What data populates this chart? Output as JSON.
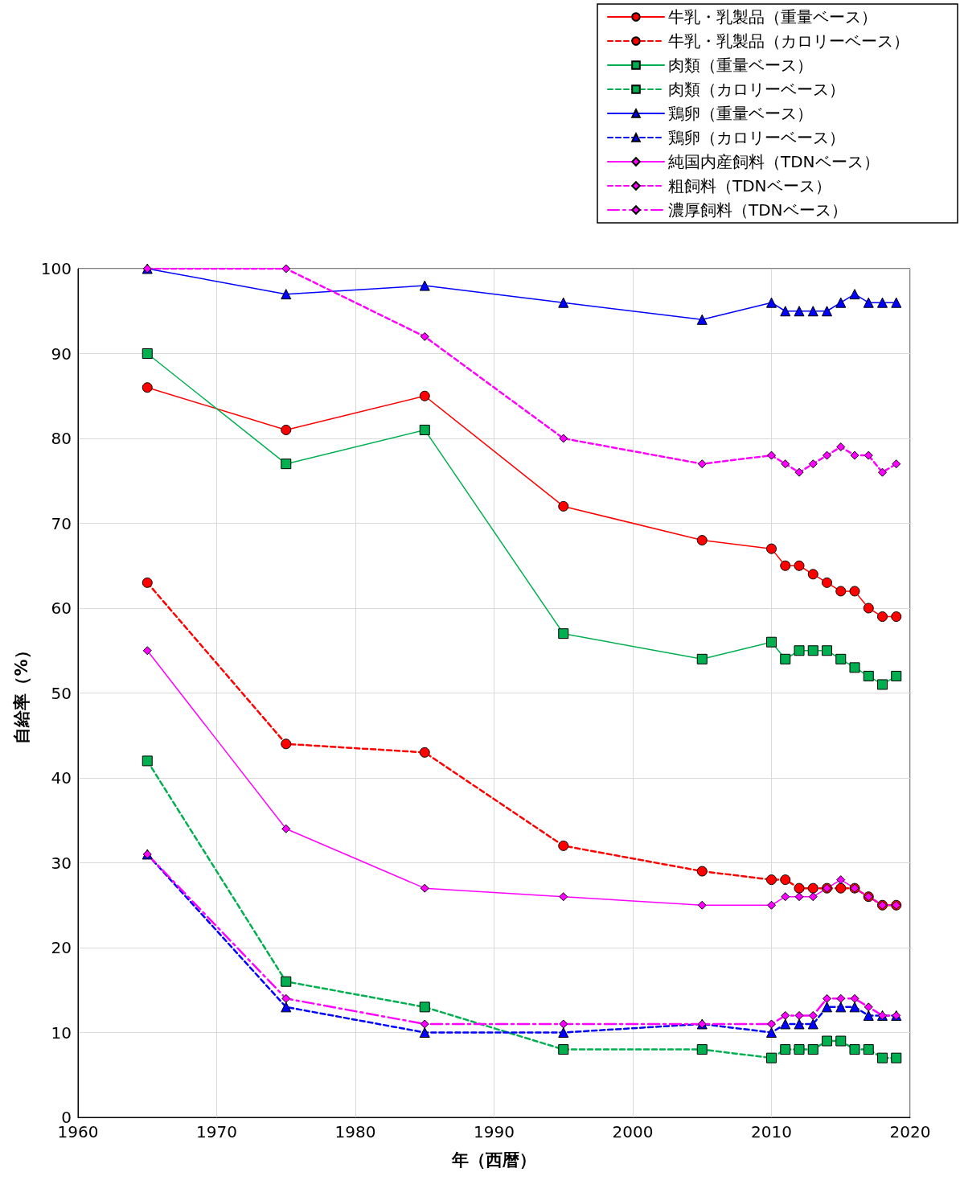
{
  "chart_data": {
    "type": "line",
    "xlabel": "年（西暦）",
    "ylabel": "自給率（%）",
    "x": [
      1965,
      1975,
      1985,
      1995,
      2005,
      2010,
      2011,
      2012,
      2013,
      2014,
      2015,
      2016,
      2017,
      2018,
      2019
    ],
    "xlim": [
      1960,
      2020
    ],
    "xticks": [
      1960,
      1970,
      1980,
      1990,
      2000,
      2010,
      2020
    ],
    "ylim": [
      0,
      100
    ],
    "yticks": [
      0,
      10,
      20,
      30,
      40,
      50,
      60,
      70,
      80,
      90,
      100
    ],
    "grid": true,
    "legend": "top right",
    "series": [
      {
        "name": "牛乳・乳製品（重量ベース）",
        "color": "#ff0000",
        "marker": "circle",
        "line_style": "solid",
        "values": [
          86,
          81,
          85,
          72,
          68,
          67,
          65,
          65,
          64,
          63,
          62,
          62,
          60,
          59,
          59
        ]
      },
      {
        "name": "牛乳・乳製品（カロリーベース）",
        "color": "#ff0000",
        "marker": "circle",
        "line_style": "dashed",
        "values": [
          63,
          44,
          43,
          32,
          29,
          28,
          28,
          27,
          27,
          27,
          27,
          27,
          26,
          25,
          25
        ]
      },
      {
        "name": "肉類（重量ベース）",
        "color": "#00b050",
        "marker": "square",
        "line_style": "solid",
        "values": [
          90,
          77,
          81,
          57,
          54,
          56,
          54,
          55,
          55,
          55,
          54,
          53,
          52,
          51,
          52
        ]
      },
      {
        "name": "肉類（カロリーベース）",
        "color": "#00b050",
        "marker": "square",
        "line_style": "dashed",
        "values": [
          42,
          16,
          13,
          8,
          8,
          7,
          8,
          8,
          8,
          9,
          9,
          8,
          8,
          7,
          7
        ]
      },
      {
        "name": "鶏卵（重量ベース）",
        "color": "#0000ff",
        "marker": "triangle",
        "line_style": "solid",
        "values": [
          100,
          97,
          98,
          96,
          94,
          96,
          95,
          95,
          95,
          95,
          96,
          97,
          96,
          96,
          96
        ]
      },
      {
        "name": "鶏卵（カロリーベース）",
        "color": "#0000ff",
        "marker": "triangle",
        "line_style": "dashed",
        "values": [
          31,
          13,
          10,
          10,
          11,
          10,
          11,
          11,
          11,
          13,
          13,
          13,
          12,
          12,
          12
        ]
      },
      {
        "name": "純国内産飼料（TDNベース）",
        "color": "#ff00ff",
        "marker": "diamond",
        "line_style": "solid",
        "values": [
          55,
          34,
          27,
          26,
          25,
          25,
          26,
          26,
          26,
          27,
          28,
          27,
          26,
          25,
          25
        ]
      },
      {
        "name": "粗飼料（TDNベース）",
        "color": "#ff00ff",
        "marker": "diamond",
        "line_style": "dashed",
        "values": [
          100,
          100,
          92,
          80,
          77,
          78,
          77,
          76,
          77,
          78,
          79,
          78,
          78,
          76,
          77
        ]
      },
      {
        "name": "濃厚飼料（TDNベース）",
        "color": "#ff00ff",
        "marker": "diamond",
        "line_style": "dashdot",
        "values": [
          31,
          14,
          11,
          11,
          11,
          11,
          12,
          12,
          12,
          14,
          14,
          14,
          13,
          12,
          12
        ]
      }
    ]
  }
}
